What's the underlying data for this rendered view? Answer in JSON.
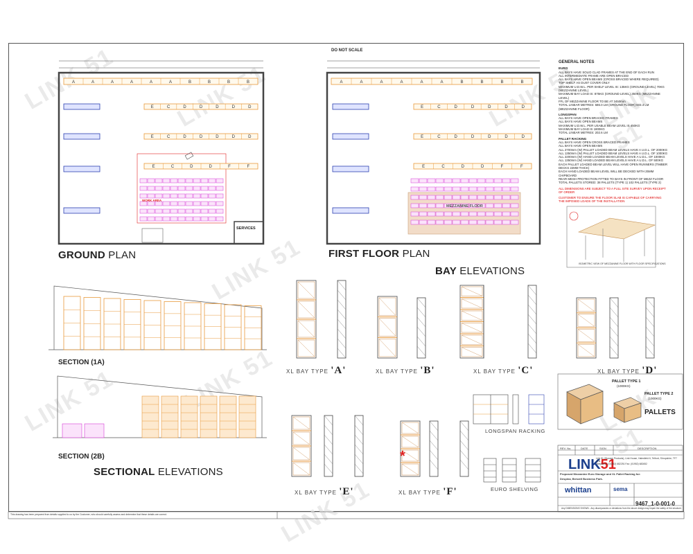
{
  "header": {
    "do_not_scale": "DO NOT SCALE"
  },
  "watermark": "LINK 51",
  "plans": {
    "ground": {
      "title_bold": "GROUND",
      "title_rest": " PLAN",
      "work_area": "WORK AREA",
      "services": "SERVICES",
      "row_top": [
        "A",
        "A",
        "A",
        "A",
        "A",
        "A",
        "B",
        "B",
        "B",
        "B"
      ],
      "row_2": [
        "E",
        "C",
        "D",
        "D",
        "D",
        "D",
        "D"
      ],
      "row_3": [
        "E",
        "C",
        "D",
        "D",
        "D",
        "D",
        "D"
      ],
      "row_4": [
        "E",
        "C",
        "D",
        "D",
        "F",
        "F"
      ]
    },
    "first": {
      "title_bold": "FIRST FLOOR",
      "title_rest": " PLAN",
      "mezzanine": "MEZZANINE FLOOR"
    }
  },
  "bay_elevations": {
    "title_bold": "BAY",
    "title_rest": " ELEVATIONS",
    "types": [
      {
        "prefix": "XL BAY TYPE",
        "letter": "'A'"
      },
      {
        "prefix": "XL BAY TYPE",
        "letter": "'B'"
      },
      {
        "prefix": "XL BAY TYPE",
        "letter": "'C'"
      },
      {
        "prefix": "XL BAY TYPE",
        "letter": "'D'"
      },
      {
        "prefix": "XL BAY TYPE",
        "letter": "'E'"
      },
      {
        "prefix": "XL BAY TYPE",
        "letter": "'F'"
      }
    ]
  },
  "sections": {
    "s1": "SECTION (1A)",
    "s2": "SECTION (2B)",
    "title_bold": "SECTIONAL",
    "title_rest": " ELEVATIONS"
  },
  "racking": {
    "longspan": "LONGSPAN RACKING",
    "euro": "EURO SHELVING"
  },
  "pallets": {
    "title": "PALLETS",
    "type1": "PALLET TYPE 1",
    "type1_w": "(1000KG)",
    "type2": "PALLET TYPE 2",
    "type2_w": "(1000KG)"
  },
  "notes": {
    "title": "GENERAL NOTES",
    "euro_head": "EURO",
    "euro": [
      "ALL BAYS HAVE SOLID CLAD FRAMES AT THE END OF EACH RUN",
      "ALL INTERMEDIATE FRAME ARE OPEN BRACED",
      "ALL BAYS HAVE OPEN BEAMS (CROSS BRACED WHERE REQUIRED)",
      "TOP SHELF AS DUST COVER ONLY",
      "MAXIMUM U.D.W.L. PER SHELF LEVEL IS: 135KG (GROUND LEVEL) 70KG (MEZZANINE LEVEL)",
      "MAXIMUM BAY LOAD IS: 875KG (GROUND LEVEL) 350KG (MEZZANINE LEVEL)",
      "FFL OF MEZZANINE FLOOR TO BE AT 3450mm",
      "TOTAL LINEAR METRES: 586.0 LM (GROUND FLOOR) 603.4 LM (MEZZANINE FLOOR)"
    ],
    "longspan_head": "LONGSPAN",
    "longspan": [
      "ALL BAYS HAVE OPEN BRACED FRAMES",
      "ALL BAYS HAVE OPEN BEAMS",
      "MAXIMUM U.D.W.L. PER USABLE BEAM LEVEL IS 450KG",
      "MAXIMUM BAY LOAD IS 1800KG",
      "TOTAL LINEAR METRES: 202.6 LM"
    ],
    "pallet_head": "PALLET RACKING",
    "pallet": [
      "ALL BAYS HAVE OPEN CROSS BRACED FRAMES",
      "ALL BAYS HAVE OPEN BEAMS",
      "ALL 2700mm (W) PALLET LOADED BEAM LEVELS HAVE A U.D.L. OF 2000KG",
      "ALL 1350mm (W) PALLET LOADED BEAM LEVELS HAVE A U.D.L. OF 1000KG",
      "ALL 2200mm (W) HAND LOADED BEAM LEVELS HAVE A U.D.L. OF 1000KG",
      "ALL 1350mm (W) HAND LOADED BEAM LEVELS HAVE A U.D.L. OF 500KG",
      "EACH PALLET LOADED BEAM LEVEL WILL HAVE OPEN RUNNERS (TIMBER DECKS 22MM THICK)",
      "EACH HAND LOADED BEAM LEVEL WILL BE DECKED WITH 25MM CHIPBOARD",
      "REAR MESH PROTECTION FITTED TO BAYS IN FRONT OF MEZZ FLOOR",
      "TOTAL PALLETS STORED: 38 PALLETS (TYPE 1) 102 PALLETS (TYPE 2)"
    ],
    "red1": "ALL DIMENSIONS ARE SUBJECT TO A FULL SITE SURVEY UPON RECEIPT OF ORDER",
    "red2": "CUSTOMER TO ENSURE THE FLOOR SLAB IS CAPABLE OF CARRYING THE IMPOSED LOADS OF THE INSTALLATION",
    "iso_caption": "ISOMETRIC VIEW OF MEZZANINE FLOOR WITH FLOOR SPECIFICATIONS"
  },
  "title_block": {
    "rev_no": "REV. No.",
    "date": "DATE",
    "sign": "SIGN",
    "description": "DESCRIPTION",
    "company": "Link 51 (Storage Products), Link House, Halesfield 6, Telford, Shropshire, TF7 4LN",
    "telephone": "Telephone: (01952) 682251   Fax: (01952) 682652",
    "proposed": "Proposed Mezzanine Euro Storage and XL Pallet Racking for:",
    "client": "Despina, Brewell Business Park.",
    "drawing_no": "9467_1-0-001-0",
    "footer_left": "This drawing has been prepared from details supplied to us by the Customer, who should carefully assess and determine that these details are correct.",
    "footer_right": "Any DIMENSIONS SHOWN - Any discrepancies or deviations from the above design may impair the safety of the structure."
  },
  "colors": {
    "orange": "#e89a3c",
    "blue": "#2b3fb0",
    "magenta": "#d63ad6",
    "red": "#e02020",
    "mezz": "#f2dcc8",
    "line": "#444444"
  }
}
